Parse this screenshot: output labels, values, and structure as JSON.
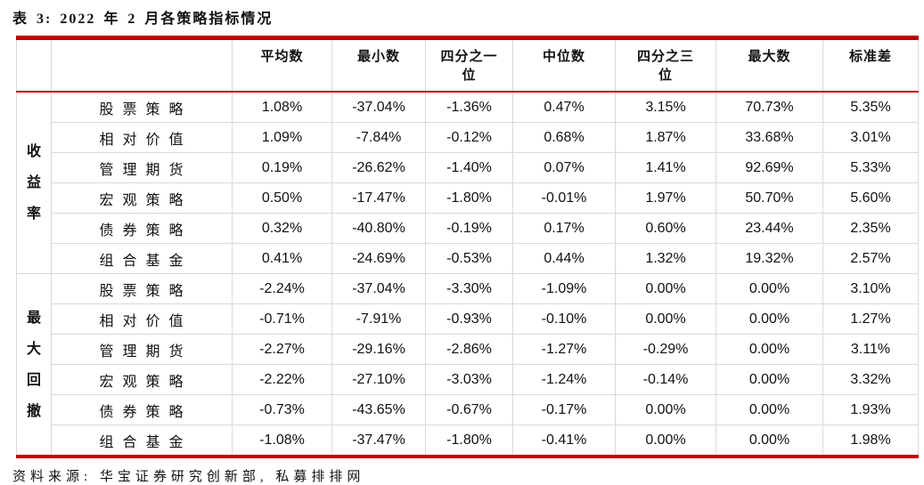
{
  "title": "表 3: 2022 年 2 月各策略指标情况",
  "table": {
    "column_headers": [
      "平均数",
      "最小数",
      "四分之一\n位",
      "中位数",
      "四分之三\n位",
      "最大数",
      "标准差"
    ],
    "groups": [
      {
        "label": "收益率",
        "rows": [
          {
            "strategy": "股票策略",
            "values": [
              "1.08%",
              "-37.04%",
              "-1.36%",
              "0.47%",
              "3.15%",
              "70.73%",
              "5.35%"
            ]
          },
          {
            "strategy": "相对价值",
            "values": [
              "1.09%",
              "-7.84%",
              "-0.12%",
              "0.68%",
              "1.87%",
              "33.68%",
              "3.01%"
            ]
          },
          {
            "strategy": "管理期货",
            "values": [
              "0.19%",
              "-26.62%",
              "-1.40%",
              "0.07%",
              "1.41%",
              "92.69%",
              "5.33%"
            ]
          },
          {
            "strategy": "宏观策略",
            "values": [
              "0.50%",
              "-17.47%",
              "-1.80%",
              "-0.01%",
              "1.97%",
              "50.70%",
              "5.60%"
            ]
          },
          {
            "strategy": "债券策略",
            "values": [
              "0.32%",
              "-40.80%",
              "-0.19%",
              "0.17%",
              "0.60%",
              "23.44%",
              "2.35%"
            ]
          },
          {
            "strategy": "组合基金",
            "values": [
              "0.41%",
              "-24.69%",
              "-0.53%",
              "0.44%",
              "1.32%",
              "19.32%",
              "2.57%"
            ]
          }
        ]
      },
      {
        "label": "最大回撤",
        "rows": [
          {
            "strategy": "股票策略",
            "values": [
              "-2.24%",
              "-37.04%",
              "-3.30%",
              "-1.09%",
              "0.00%",
              "0.00%",
              "3.10%"
            ]
          },
          {
            "strategy": "相对价值",
            "values": [
              "-0.71%",
              "-7.91%",
              "-0.93%",
              "-0.10%",
              "0.00%",
              "0.00%",
              "1.27%"
            ]
          },
          {
            "strategy": "管理期货",
            "values": [
              "-2.27%",
              "-29.16%",
              "-2.86%",
              "-1.27%",
              "-0.29%",
              "0.00%",
              "3.11%"
            ]
          },
          {
            "strategy": "宏观策略",
            "values": [
              "-2.22%",
              "-27.10%",
              "-3.03%",
              "-1.24%",
              "-0.14%",
              "0.00%",
              "3.32%"
            ]
          },
          {
            "strategy": "债券策略",
            "values": [
              "-0.73%",
              "-43.65%",
              "-0.67%",
              "-0.17%",
              "0.00%",
              "0.00%",
              "1.93%"
            ]
          },
          {
            "strategy": "组合基金",
            "values": [
              "-1.08%",
              "-37.47%",
              "-1.80%",
              "-0.41%",
              "0.00%",
              "0.00%",
              "1.98%"
            ]
          }
        ]
      }
    ]
  },
  "footer": {
    "source_label": "资料来源:",
    "source_text": "华宝证券研究创新部, 私募排排网"
  },
  "colors": {
    "accent_red": "#C00000",
    "grid_gray": "#D9D9D9",
    "text": "#111111"
  }
}
